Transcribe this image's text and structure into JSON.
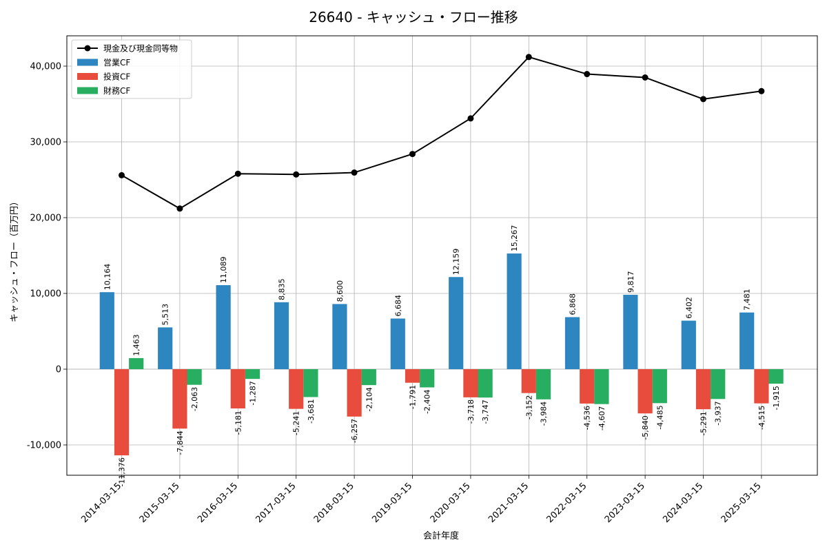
{
  "chart_data": {
    "type": "bar",
    "title": "26640 - キャッシュ・フロー推移",
    "xlabel": "会計年度",
    "ylabel": "キャッシュ・フロー（百万円）",
    "ylim": [
      -14000,
      44000
    ],
    "yticks": [
      -10000,
      0,
      10000,
      20000,
      30000,
      40000
    ],
    "ytick_labels": [
      "-10,000",
      "0",
      "10,000",
      "20,000",
      "30,000",
      "40,000"
    ],
    "grid": true,
    "legend_position": "top-left",
    "categories": [
      "2014-03-15",
      "2015-03-15",
      "2016-03-15",
      "2017-03-15",
      "2018-03-15",
      "2019-03-15",
      "2020-03-15",
      "2021-03-15",
      "2022-03-15",
      "2023-03-15",
      "2024-03-15",
      "2025-03-15"
    ],
    "series": [
      {
        "name": "営業CF",
        "kind": "bar",
        "color": "#2e86c1",
        "values": [
          10164,
          5513,
          11089,
          8835,
          8600,
          6684,
          12159,
          15267,
          6868,
          9817,
          6402,
          7481
        ],
        "labels": [
          "10,164",
          "5,513",
          "11,089",
          "8,835",
          "8,600",
          "6,684",
          "12,159",
          "15,267",
          "6,868",
          "9,817",
          "6,402",
          "7,481"
        ]
      },
      {
        "name": "投資CF",
        "kind": "bar",
        "color": "#e74c3c",
        "values": [
          -11376,
          -7844,
          -5181,
          -5241,
          -6257,
          -1791,
          -3718,
          -3152,
          -4536,
          -5840,
          -5291,
          -4515
        ],
        "labels": [
          "-11,376",
          "-7,844",
          "-5,181",
          "-5,241",
          "-6,257",
          "-1,791",
          "-3,718",
          "-3,152",
          "-4,536",
          "-5,840",
          "-5,291",
          "-4,515"
        ]
      },
      {
        "name": "財務CF",
        "kind": "bar",
        "color": "#27ae60",
        "values": [
          1463,
          -2063,
          -1287,
          -3681,
          -2104,
          -2404,
          -3747,
          -3984,
          -4607,
          -4485,
          -3937,
          -1915
        ],
        "labels": [
          "1,463",
          "-2,063",
          "-1,287",
          "-3,681",
          "-2,104",
          "-2,404",
          "-3,747",
          "-3,984",
          "-4,607",
          "-4,485",
          "-3,937",
          "-1,915"
        ]
      },
      {
        "name": "現金及び現金同等物",
        "kind": "line",
        "color": "#000000",
        "values": [
          25600,
          21200,
          25800,
          25700,
          25950,
          28400,
          33100,
          41200,
          38950,
          38500,
          35650,
          36700
        ]
      }
    ]
  }
}
